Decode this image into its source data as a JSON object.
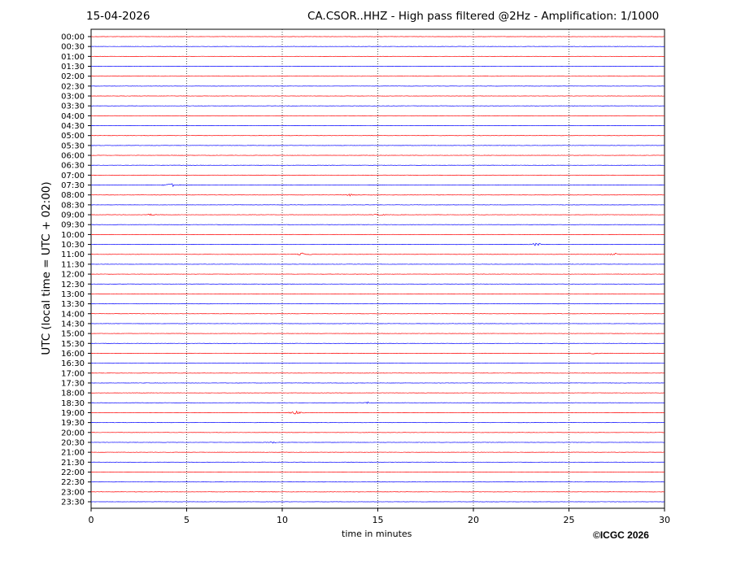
{
  "header": {
    "date": "15-04-2026",
    "title": "CA.CSOR..HHZ - High pass filtered @2Hz - Amplification: 1/1000"
  },
  "footer": {
    "copyright": "©ICGC 2026"
  },
  "chart_data": {
    "type": "line",
    "subtype": "helicorder",
    "xlabel": "time in minutes",
    "ylabel": "UTC (local time = UTC + 02:00)",
    "xlim": [
      0,
      30
    ],
    "xticks": [
      0,
      5,
      10,
      15,
      20,
      25,
      30
    ],
    "grid": "vertical dotted lines at x ticks",
    "row_labels": [
      "00:00",
      "00:30",
      "01:00",
      "01:30",
      "02:00",
      "02:30",
      "03:00",
      "03:30",
      "04:00",
      "04:30",
      "05:00",
      "05:30",
      "06:00",
      "06:30",
      "07:00",
      "07:30",
      "08:00",
      "08:30",
      "09:00",
      "09:30",
      "10:00",
      "10:30",
      "11:00",
      "11:30",
      "12:00",
      "12:30",
      "13:00",
      "13:30",
      "14:00",
      "14:30",
      "15:00",
      "15:30",
      "16:00",
      "16:30",
      "17:00",
      "17:30",
      "18:00",
      "18:30",
      "19:00",
      "19:30",
      "20:00",
      "20:30",
      "21:00",
      "21:30",
      "22:00",
      "22:30",
      "23:00",
      "23:30"
    ],
    "row_colors": [
      "#ff0000",
      "#0000ff"
    ],
    "row_colors_by_row": [
      "#ff0000",
      "#0000ff",
      "#ff0000",
      "#0000ff",
      "#ff0000",
      "#0000ff",
      "#ff0000",
      "#0000ff",
      "#ff0000",
      "#0000ff",
      "#ff0000",
      "#0000ff",
      "#ff0000",
      "#0000ff",
      "#ff0000",
      "#0000ff",
      "#ff0000",
      "#0000ff",
      "#ff0000",
      "#0000ff",
      "#ff0000",
      "#0000ff",
      "#ff0000",
      "#0000ff",
      "#ff0000",
      "#0000ff",
      "#ff0000",
      "#0000ff",
      "#ff0000",
      "#0000ff",
      "#ff0000",
      "#0000ff",
      "#ff0000",
      "#0000ff",
      "#ff0000",
      "#0000ff",
      "#ff0000",
      "#0000ff",
      "#ff0000",
      "#0000ff",
      "#ff0000",
      "#0000ff",
      "#ff0000",
      "#0000ff",
      "#ff0000",
      "#0000ff",
      "#ff0000",
      "#0000ff"
    ],
    "events": [
      {
        "row": "07:30",
        "minute": 4.2,
        "amplitude": 0.35
      },
      {
        "row": "08:00",
        "minute": 13.5,
        "amplitude": 0.15
      },
      {
        "row": "09:00",
        "minute": 3.1,
        "amplitude": 0.12
      },
      {
        "row": "09:00",
        "minute": 15.1,
        "amplitude": 0.12
      },
      {
        "row": "10:30",
        "minute": 23.3,
        "amplitude": 0.25
      },
      {
        "row": "11:00",
        "minute": 11.1,
        "amplitude": 0.25
      },
      {
        "row": "11:00",
        "minute": 27.4,
        "amplitude": 0.15
      },
      {
        "row": "16:00",
        "minute": 26.3,
        "amplitude": 0.1
      },
      {
        "row": "18:30",
        "minute": 14.5,
        "amplitude": 0.12
      },
      {
        "row": "19:00",
        "minute": 10.7,
        "amplitude": 0.25
      },
      {
        "row": "20:30",
        "minute": 9.5,
        "amplitude": 0.1
      }
    ]
  }
}
